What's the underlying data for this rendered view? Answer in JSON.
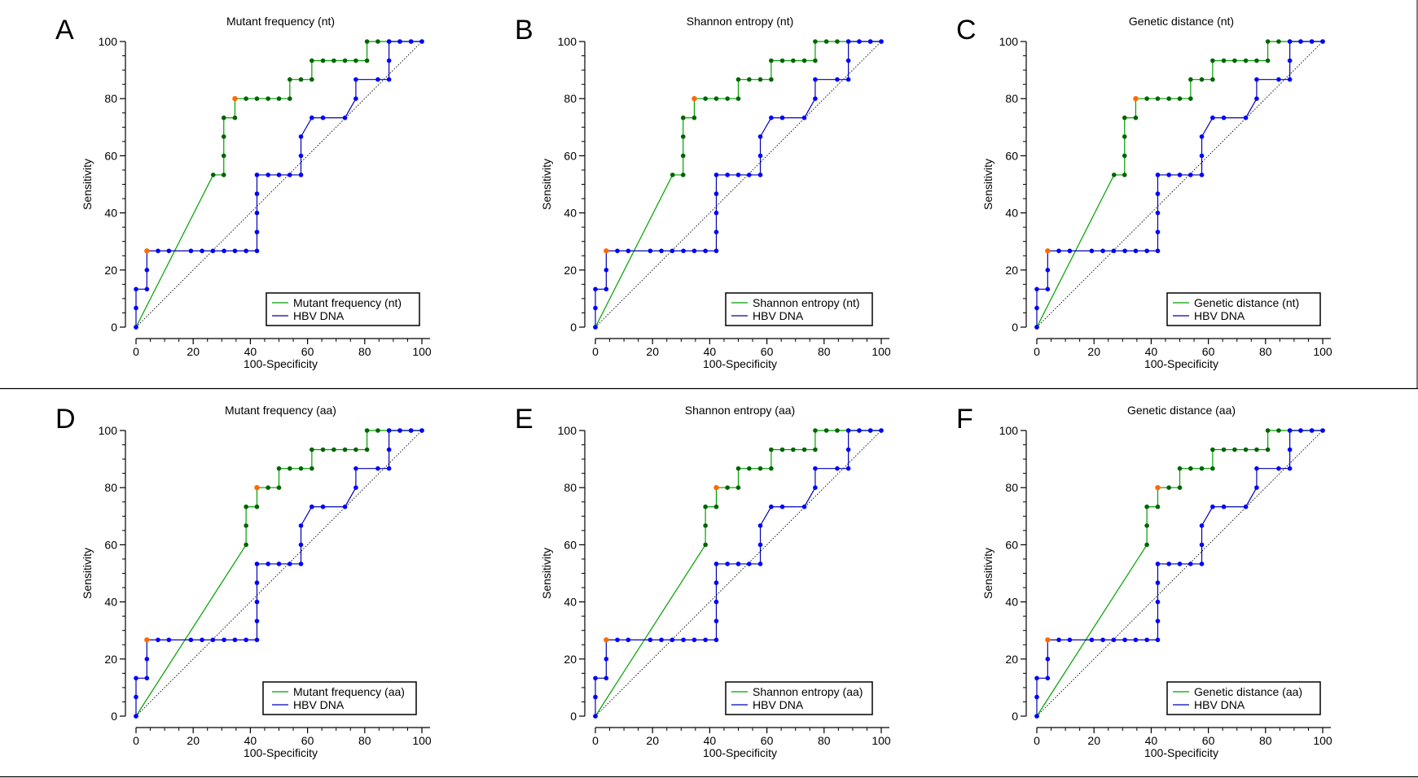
{
  "chart_data": [
    {
      "type": "line",
      "panel": "A",
      "title": "Mutant frequency (nt)",
      "xlabel": "100-Specificity",
      "ylabel": "Sensitivity",
      "xlim": [
        0,
        100
      ],
      "ylim": [
        0,
        100
      ],
      "xticks": [
        "0",
        "20",
        "40",
        "60",
        "80",
        "100"
      ],
      "yticks": [
        "0",
        "20",
        "40",
        "60",
        "80",
        "100"
      ],
      "legend_position": "bottom-right",
      "series": [
        {
          "name": "Mutant frequency (nt)",
          "color": "#00a000",
          "marker_color": "#006400",
          "x": [
            0,
            27,
            30.7,
            30.7,
            30.7,
            30.7,
            34.6,
            34.6,
            38.5,
            42.3,
            46.2,
            50,
            53.8,
            53.8,
            57.7,
            61.5,
            61.5,
            65.4,
            69.2,
            73.1,
            76.9,
            80.8,
            80.8,
            84.6,
            88.5,
            92.3,
            96.2,
            100
          ],
          "y": [
            0,
            53.3,
            53.3,
            60,
            66.7,
            73.3,
            73.3,
            80,
            80,
            80,
            80,
            80,
            80,
            86.7,
            86.7,
            86.7,
            93.3,
            93.3,
            93.3,
            93.3,
            93.3,
            93.3,
            100,
            100,
            100,
            100,
            100,
            100
          ],
          "optimal": [
            34.6,
            80
          ]
        },
        {
          "name": "HBV DNA",
          "color": "#0000b4",
          "marker_color": "#0000ff",
          "x": [
            0,
            0,
            0,
            3.8,
            3.8,
            3.8,
            7.7,
            11.5,
            19.2,
            23.1,
            26.9,
            30.8,
            34.6,
            38.5,
            42.3,
            42.3,
            42.3,
            42.3,
            42.3,
            46.2,
            50,
            53.8,
            57.7,
            57.7,
            57.7,
            61.5,
            65.4,
            73.1,
            76.9,
            76.9,
            84.6,
            88.5,
            88.5,
            88.5,
            92.3,
            96.2,
            100
          ],
          "y": [
            0,
            6.7,
            13.3,
            13.3,
            20,
            26.7,
            26.7,
            26.7,
            26.7,
            26.7,
            26.7,
            26.7,
            26.7,
            26.7,
            26.7,
            33.3,
            40,
            46.7,
            53.3,
            53.3,
            53.3,
            53.3,
            53.3,
            60,
            66.7,
            73.3,
            73.3,
            73.3,
            80,
            86.7,
            86.7,
            86.7,
            93.3,
            100,
            100,
            100,
            100
          ],
          "optimal": [
            3.8,
            26.7
          ]
        }
      ]
    },
    {
      "type": "line",
      "panel": "B",
      "title": "Shannon entropy (nt)",
      "xlabel": "100-Specificity",
      "ylabel": "Sensitivity",
      "xlim": [
        0,
        100
      ],
      "ylim": [
        0,
        100
      ],
      "xticks": [
        "0",
        "20",
        "40",
        "60",
        "80",
        "100"
      ],
      "yticks": [
        "0",
        "20",
        "40",
        "60",
        "80",
        "100"
      ],
      "legend_position": "bottom-right",
      "series": [
        {
          "name": "Shannon entropy (nt)",
          "color": "#00a000",
          "marker_color": "#006400",
          "x": [
            0,
            27,
            30.7,
            30.7,
            30.7,
            30.7,
            34.6,
            34.6,
            38.5,
            42.3,
            46.2,
            50,
            50,
            53.8,
            57.7,
            61.5,
            61.5,
            65.4,
            69.2,
            73.1,
            76.9,
            76.9,
            80.8,
            84.6,
            88.5,
            92.3,
            96.2,
            100
          ],
          "y": [
            0,
            53.3,
            53.3,
            60,
            66.7,
            73.3,
            73.3,
            80,
            80,
            80,
            80,
            80,
            86.7,
            86.7,
            86.7,
            86.7,
            93.3,
            93.3,
            93.3,
            93.3,
            93.3,
            100,
            100,
            100,
            100,
            100,
            100,
            100
          ],
          "optimal": [
            34.6,
            80
          ]
        },
        {
          "name": "HBV DNA",
          "color": "#0000b4",
          "marker_color": "#0000ff",
          "x": [
            0,
            0,
            0,
            3.8,
            3.8,
            3.8,
            7.7,
            11.5,
            19.2,
            23.1,
            26.9,
            30.8,
            34.6,
            38.5,
            42.3,
            42.3,
            42.3,
            42.3,
            42.3,
            46.2,
            50,
            53.8,
            57.7,
            57.7,
            57.7,
            61.5,
            65.4,
            73.1,
            76.9,
            76.9,
            84.6,
            88.5,
            88.5,
            88.5,
            92.3,
            96.2,
            100
          ],
          "y": [
            0,
            6.7,
            13.3,
            13.3,
            20,
            26.7,
            26.7,
            26.7,
            26.7,
            26.7,
            26.7,
            26.7,
            26.7,
            26.7,
            26.7,
            33.3,
            40,
            46.7,
            53.3,
            53.3,
            53.3,
            53.3,
            53.3,
            60,
            66.7,
            73.3,
            73.3,
            73.3,
            80,
            86.7,
            86.7,
            86.7,
            93.3,
            100,
            100,
            100,
            100
          ],
          "optimal": [
            3.8,
            26.7
          ]
        }
      ]
    },
    {
      "type": "line",
      "panel": "C",
      "title": "Genetic distance (nt)",
      "xlabel": "100-Specificity",
      "ylabel": "Sensitivity",
      "xlim": [
        0,
        100
      ],
      "ylim": [
        0,
        100
      ],
      "xticks": [
        "0",
        "20",
        "40",
        "60",
        "80",
        "100"
      ],
      "yticks": [
        "0",
        "20",
        "40",
        "60",
        "80",
        "100"
      ],
      "legend_position": "bottom-right",
      "series": [
        {
          "name": "Genetic distance (nt)",
          "color": "#00a000",
          "marker_color": "#006400",
          "x": [
            0,
            27,
            30.7,
            30.7,
            30.7,
            30.7,
            34.6,
            34.6,
            38.5,
            42.3,
            46.2,
            50,
            53.8,
            53.8,
            57.7,
            61.5,
            61.5,
            65.4,
            69.2,
            73.1,
            76.9,
            80.8,
            80.8,
            84.6,
            88.5,
            92.3,
            96.2,
            100
          ],
          "y": [
            0,
            53.3,
            53.3,
            60,
            66.7,
            73.3,
            73.3,
            80,
            80,
            80,
            80,
            80,
            80,
            86.7,
            86.7,
            86.7,
            93.3,
            93.3,
            93.3,
            93.3,
            93.3,
            93.3,
            100,
            100,
            100,
            100,
            100,
            100
          ],
          "optimal": [
            34.6,
            80
          ]
        },
        {
          "name": "HBV DNA",
          "color": "#0000b4",
          "marker_color": "#0000ff",
          "x": [
            0,
            0,
            0,
            3.8,
            3.8,
            3.8,
            7.7,
            11.5,
            19.2,
            23.1,
            26.9,
            30.8,
            34.6,
            38.5,
            42.3,
            42.3,
            42.3,
            42.3,
            42.3,
            46.2,
            50,
            53.8,
            57.7,
            57.7,
            57.7,
            61.5,
            65.4,
            73.1,
            76.9,
            76.9,
            84.6,
            88.5,
            88.5,
            88.5,
            92.3,
            96.2,
            100
          ],
          "y": [
            0,
            6.7,
            13.3,
            13.3,
            20,
            26.7,
            26.7,
            26.7,
            26.7,
            26.7,
            26.7,
            26.7,
            26.7,
            26.7,
            26.7,
            33.3,
            40,
            46.7,
            53.3,
            53.3,
            53.3,
            53.3,
            53.3,
            60,
            66.7,
            73.3,
            73.3,
            73.3,
            80,
            86.7,
            86.7,
            86.7,
            93.3,
            100,
            100,
            100,
            100
          ],
          "optimal": [
            3.8,
            26.7
          ]
        }
      ]
    },
    {
      "type": "line",
      "panel": "D",
      "title": "Mutant frequency (aa)",
      "xlabel": "100-Specificity",
      "ylabel": "Sensitivity",
      "xlim": [
        0,
        100
      ],
      "ylim": [
        0,
        100
      ],
      "xticks": [
        "0",
        "20",
        "40",
        "60",
        "80",
        "100"
      ],
      "yticks": [
        "0",
        "20",
        "40",
        "60",
        "80",
        "100"
      ],
      "legend_position": "bottom-right",
      "series": [
        {
          "name": "Mutant frequency (aa)",
          "color": "#00a000",
          "marker_color": "#006400",
          "x": [
            0,
            38.5,
            38.5,
            38.5,
            42.3,
            42.3,
            46.2,
            50,
            50,
            53.8,
            57.7,
            61.5,
            61.5,
            65.4,
            69.2,
            73.1,
            76.9,
            80.8,
            80.8,
            84.6,
            88.5,
            92.3,
            96.2,
            100
          ],
          "y": [
            0,
            60,
            66.7,
            73.3,
            73.3,
            80,
            80,
            80,
            86.7,
            86.7,
            86.7,
            86.7,
            93.3,
            93.3,
            93.3,
            93.3,
            93.3,
            93.3,
            100,
            100,
            100,
            100,
            100,
            100
          ],
          "optimal": [
            42.3,
            80
          ]
        },
        {
          "name": "HBV DNA",
          "color": "#0000b4",
          "marker_color": "#0000ff",
          "x": [
            0,
            0,
            0,
            3.8,
            3.8,
            3.8,
            7.7,
            11.5,
            19.2,
            23.1,
            26.9,
            30.8,
            34.6,
            38.5,
            42.3,
            42.3,
            42.3,
            42.3,
            42.3,
            46.2,
            50,
            53.8,
            57.7,
            57.7,
            57.7,
            61.5,
            65.4,
            73.1,
            76.9,
            76.9,
            84.6,
            88.5,
            88.5,
            88.5,
            92.3,
            96.2,
            100
          ],
          "y": [
            0,
            6.7,
            13.3,
            13.3,
            20,
            26.7,
            26.7,
            26.7,
            26.7,
            26.7,
            26.7,
            26.7,
            26.7,
            26.7,
            26.7,
            33.3,
            40,
            46.7,
            53.3,
            53.3,
            53.3,
            53.3,
            53.3,
            60,
            66.7,
            73.3,
            73.3,
            73.3,
            80,
            86.7,
            86.7,
            86.7,
            93.3,
            100,
            100,
            100,
            100
          ],
          "optimal": [
            3.8,
            26.7
          ]
        }
      ]
    },
    {
      "type": "line",
      "panel": "E",
      "title": "Shannon entropy (aa)",
      "xlabel": "100-Specificity",
      "ylabel": "Sensitivity",
      "xlim": [
        0,
        100
      ],
      "ylim": [
        0,
        100
      ],
      "xticks": [
        "0",
        "20",
        "40",
        "60",
        "80",
        "100"
      ],
      "yticks": [
        "0",
        "20",
        "40",
        "60",
        "80",
        "100"
      ],
      "legend_position": "bottom-right",
      "series": [
        {
          "name": "Shannon entropy (aa)",
          "color": "#00a000",
          "marker_color": "#006400",
          "x": [
            0,
            38.5,
            38.5,
            38.5,
            42.3,
            42.3,
            46.2,
            50,
            50,
            53.8,
            57.7,
            61.5,
            61.5,
            65.4,
            69.2,
            73.1,
            76.9,
            76.9,
            80.8,
            84.6,
            88.5,
            92.3,
            96.2,
            100
          ],
          "y": [
            0,
            60,
            66.7,
            73.3,
            73.3,
            80,
            80,
            80,
            86.7,
            86.7,
            86.7,
            86.7,
            93.3,
            93.3,
            93.3,
            93.3,
            93.3,
            100,
            100,
            100,
            100,
            100,
            100,
            100
          ],
          "optimal": [
            42.3,
            80
          ]
        },
        {
          "name": "HBV DNA",
          "color": "#0000b4",
          "marker_color": "#0000ff",
          "x": [
            0,
            0,
            0,
            3.8,
            3.8,
            3.8,
            7.7,
            11.5,
            19.2,
            23.1,
            26.9,
            30.8,
            34.6,
            38.5,
            42.3,
            42.3,
            42.3,
            42.3,
            42.3,
            46.2,
            50,
            53.8,
            57.7,
            57.7,
            57.7,
            61.5,
            65.4,
            73.1,
            76.9,
            76.9,
            84.6,
            88.5,
            88.5,
            88.5,
            92.3,
            96.2,
            100
          ],
          "y": [
            0,
            6.7,
            13.3,
            13.3,
            20,
            26.7,
            26.7,
            26.7,
            26.7,
            26.7,
            26.7,
            26.7,
            26.7,
            26.7,
            26.7,
            33.3,
            40,
            46.7,
            53.3,
            53.3,
            53.3,
            53.3,
            53.3,
            60,
            66.7,
            73.3,
            73.3,
            73.3,
            80,
            86.7,
            86.7,
            86.7,
            93.3,
            100,
            100,
            100,
            100
          ],
          "optimal": [
            3.8,
            26.7
          ]
        }
      ]
    },
    {
      "type": "line",
      "panel": "F",
      "title": "Genetic distance (aa)",
      "xlabel": "100-Specificity",
      "ylabel": "Sensitivity",
      "xlim": [
        0,
        100
      ],
      "ylim": [
        0,
        100
      ],
      "xticks": [
        "0",
        "20",
        "40",
        "60",
        "80",
        "100"
      ],
      "yticks": [
        "0",
        "20",
        "40",
        "60",
        "80",
        "100"
      ],
      "legend_position": "bottom-right",
      "series": [
        {
          "name": "Genetic distance (aa)",
          "color": "#00a000",
          "marker_color": "#006400",
          "x": [
            0,
            38.5,
            38.5,
            38.5,
            42.3,
            42.3,
            46.2,
            50,
            50,
            53.8,
            57.7,
            61.5,
            61.5,
            65.4,
            69.2,
            73.1,
            76.9,
            80.8,
            80.8,
            84.6,
            88.5,
            92.3,
            96.2,
            100
          ],
          "y": [
            0,
            60,
            66.7,
            73.3,
            73.3,
            80,
            80,
            80,
            86.7,
            86.7,
            86.7,
            86.7,
            93.3,
            93.3,
            93.3,
            93.3,
            93.3,
            93.3,
            100,
            100,
            100,
            100,
            100,
            100
          ],
          "optimal": [
            42.3,
            80
          ]
        },
        {
          "name": "HBV DNA",
          "color": "#0000b4",
          "marker_color": "#0000ff",
          "x": [
            0,
            0,
            0,
            3.8,
            3.8,
            3.8,
            7.7,
            11.5,
            19.2,
            23.1,
            26.9,
            30.8,
            34.6,
            38.5,
            42.3,
            42.3,
            42.3,
            42.3,
            42.3,
            46.2,
            50,
            53.8,
            57.7,
            57.7,
            57.7,
            61.5,
            65.4,
            73.1,
            76.9,
            76.9,
            84.6,
            88.5,
            88.5,
            88.5,
            92.3,
            96.2,
            100
          ],
          "y": [
            0,
            6.7,
            13.3,
            13.3,
            20,
            26.7,
            26.7,
            26.7,
            26.7,
            26.7,
            26.7,
            26.7,
            26.7,
            26.7,
            26.7,
            33.3,
            40,
            46.7,
            53.3,
            53.3,
            53.3,
            53.3,
            53.3,
            60,
            66.7,
            73.3,
            73.3,
            73.3,
            80,
            86.7,
            86.7,
            86.7,
            93.3,
            100,
            100,
            100,
            100
          ],
          "optimal": [
            3.8,
            26.7
          ]
        }
      ]
    }
  ],
  "colors": {
    "optimal_point": "#ff6a00",
    "reference_line": "#000000",
    "axis": "#000000"
  }
}
